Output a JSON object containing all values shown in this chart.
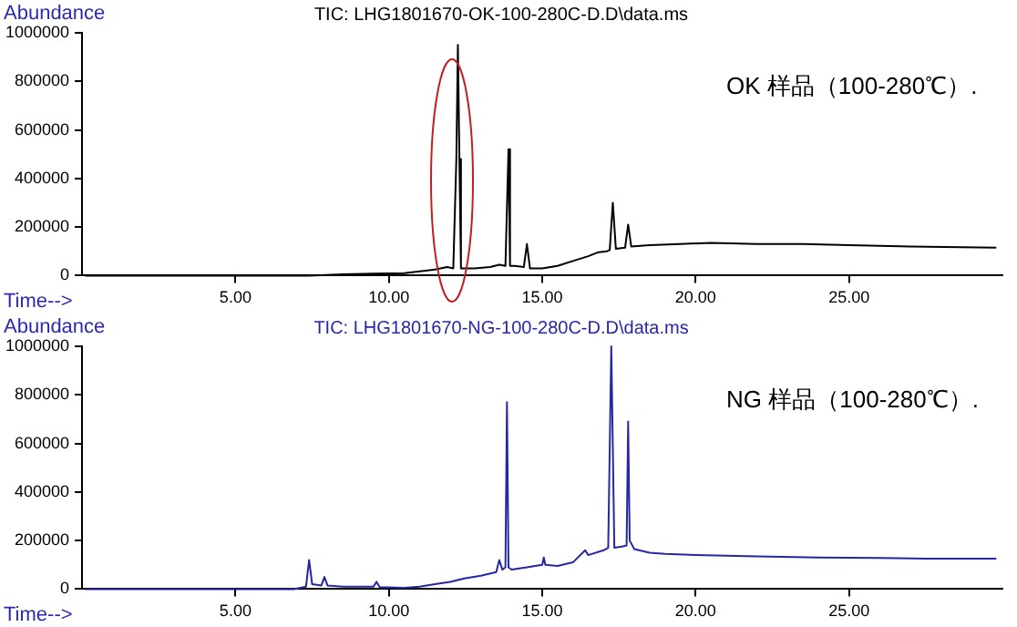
{
  "chart_data": [
    {
      "type": "line",
      "title": "TIC: LHG1801670-OK-100-280C-D.D\\data.ms",
      "xlabel": "Time-->",
      "ylabel": "Abundance",
      "annotations": [
        "OK 样品（100-280℃）."
      ],
      "legend": false,
      "grid": false,
      "marker": "none",
      "line_style": "solid",
      "xlim": [
        0,
        30
      ],
      "xticks": [
        {
          "value": 5,
          "label": "5.00"
        },
        {
          "value": 10,
          "label": "10.00"
        },
        {
          "value": 15,
          "label": "15.00"
        },
        {
          "value": 20,
          "label": "20.00"
        },
        {
          "value": 25,
          "label": "25.00"
        }
      ],
      "ylim": [
        0,
        1000000
      ],
      "yticks": [
        0,
        200000,
        400000,
        600000,
        800000,
        1000000
      ],
      "series": [
        {
          "color": "#000000",
          "x": [
            0.1,
            7.4,
            8.5,
            9.5,
            10.5,
            11.2,
            11.5,
            11.9,
            12.1,
            12.2,
            12.25,
            12.3,
            12.35,
            12.45,
            12.8,
            13.3,
            13.6,
            13.8,
            13.9,
            13.95,
            14.1,
            14.4,
            14.5,
            14.6,
            15.0,
            15.5,
            16.0,
            16.5,
            16.8,
            17.1,
            17.2,
            17.3,
            17.4,
            17.7,
            17.8,
            17.9,
            18.5,
            19.5,
            20.5,
            22.0,
            23.5,
            25.0,
            27.0,
            29.8
          ],
          "values": [
            0,
            0,
            5000,
            8000,
            10000,
            20000,
            25000,
            35000,
            30000,
            480000,
            950000,
            480000,
            30000,
            30000,
            30000,
            35000,
            45000,
            40000,
            520000,
            40000,
            40000,
            35000,
            130000,
            30000,
            30000,
            40000,
            60000,
            80000,
            95000,
            100000,
            105000,
            300000,
            110000,
            115000,
            210000,
            120000,
            125000,
            130000,
            135000,
            130000,
            130000,
            125000,
            120000,
            115000
          ]
        }
      ]
    },
    {
      "type": "line",
      "title": "TIC: LHG1801670-NG-100-280C-D.D\\data.ms",
      "xlabel": "Time-->",
      "ylabel": "Abundance",
      "annotations": [
        "NG 样品（100-280℃）."
      ],
      "legend": false,
      "grid": false,
      "marker": "none",
      "line_style": "solid",
      "xlim": [
        0,
        30
      ],
      "xticks": [
        {
          "value": 5,
          "label": "5.00"
        },
        {
          "value": 10,
          "label": "10.00"
        },
        {
          "value": 15,
          "label": "15.00"
        },
        {
          "value": 20,
          "label": "20.00"
        },
        {
          "value": 25,
          "label": "25.00"
        }
      ],
      "ylim": [
        0,
        1000000
      ],
      "yticks": [
        0,
        200000,
        400000,
        600000,
        800000,
        1000000
      ],
      "series": [
        {
          "color": "#2626a6",
          "x": [
            0.1,
            6.9,
            7.3,
            7.4,
            7.5,
            7.8,
            7.9,
            8.0,
            8.5,
            9.5,
            9.6,
            9.7,
            10.5,
            11.0,
            11.5,
            12.0,
            12.5,
            13.0,
            13.5,
            13.6,
            13.7,
            13.8,
            13.85,
            13.9,
            14.0,
            14.5,
            15.0,
            15.05,
            15.1,
            15.5,
            16.0,
            16.4,
            16.5,
            17.0,
            17.15,
            17.25,
            17.35,
            17.6,
            17.75,
            17.8,
            17.85,
            18.0,
            18.5,
            19.0,
            20.0,
            22.0,
            24.0,
            26.0,
            28.0,
            29.8
          ],
          "values": [
            0,
            0,
            10000,
            120000,
            20000,
            15000,
            50000,
            15000,
            10000,
            10000,
            30000,
            8000,
            5000,
            10000,
            20000,
            30000,
            45000,
            55000,
            70000,
            120000,
            80000,
            90000,
            770000,
            90000,
            80000,
            90000,
            100000,
            130000,
            100000,
            95000,
            110000,
            160000,
            140000,
            160000,
            170000,
            1000000,
            170000,
            175000,
            180000,
            690000,
            200000,
            165000,
            150000,
            145000,
            140000,
            135000,
            130000,
            128000,
            125000,
            125000
          ]
        }
      ]
    }
  ]
}
